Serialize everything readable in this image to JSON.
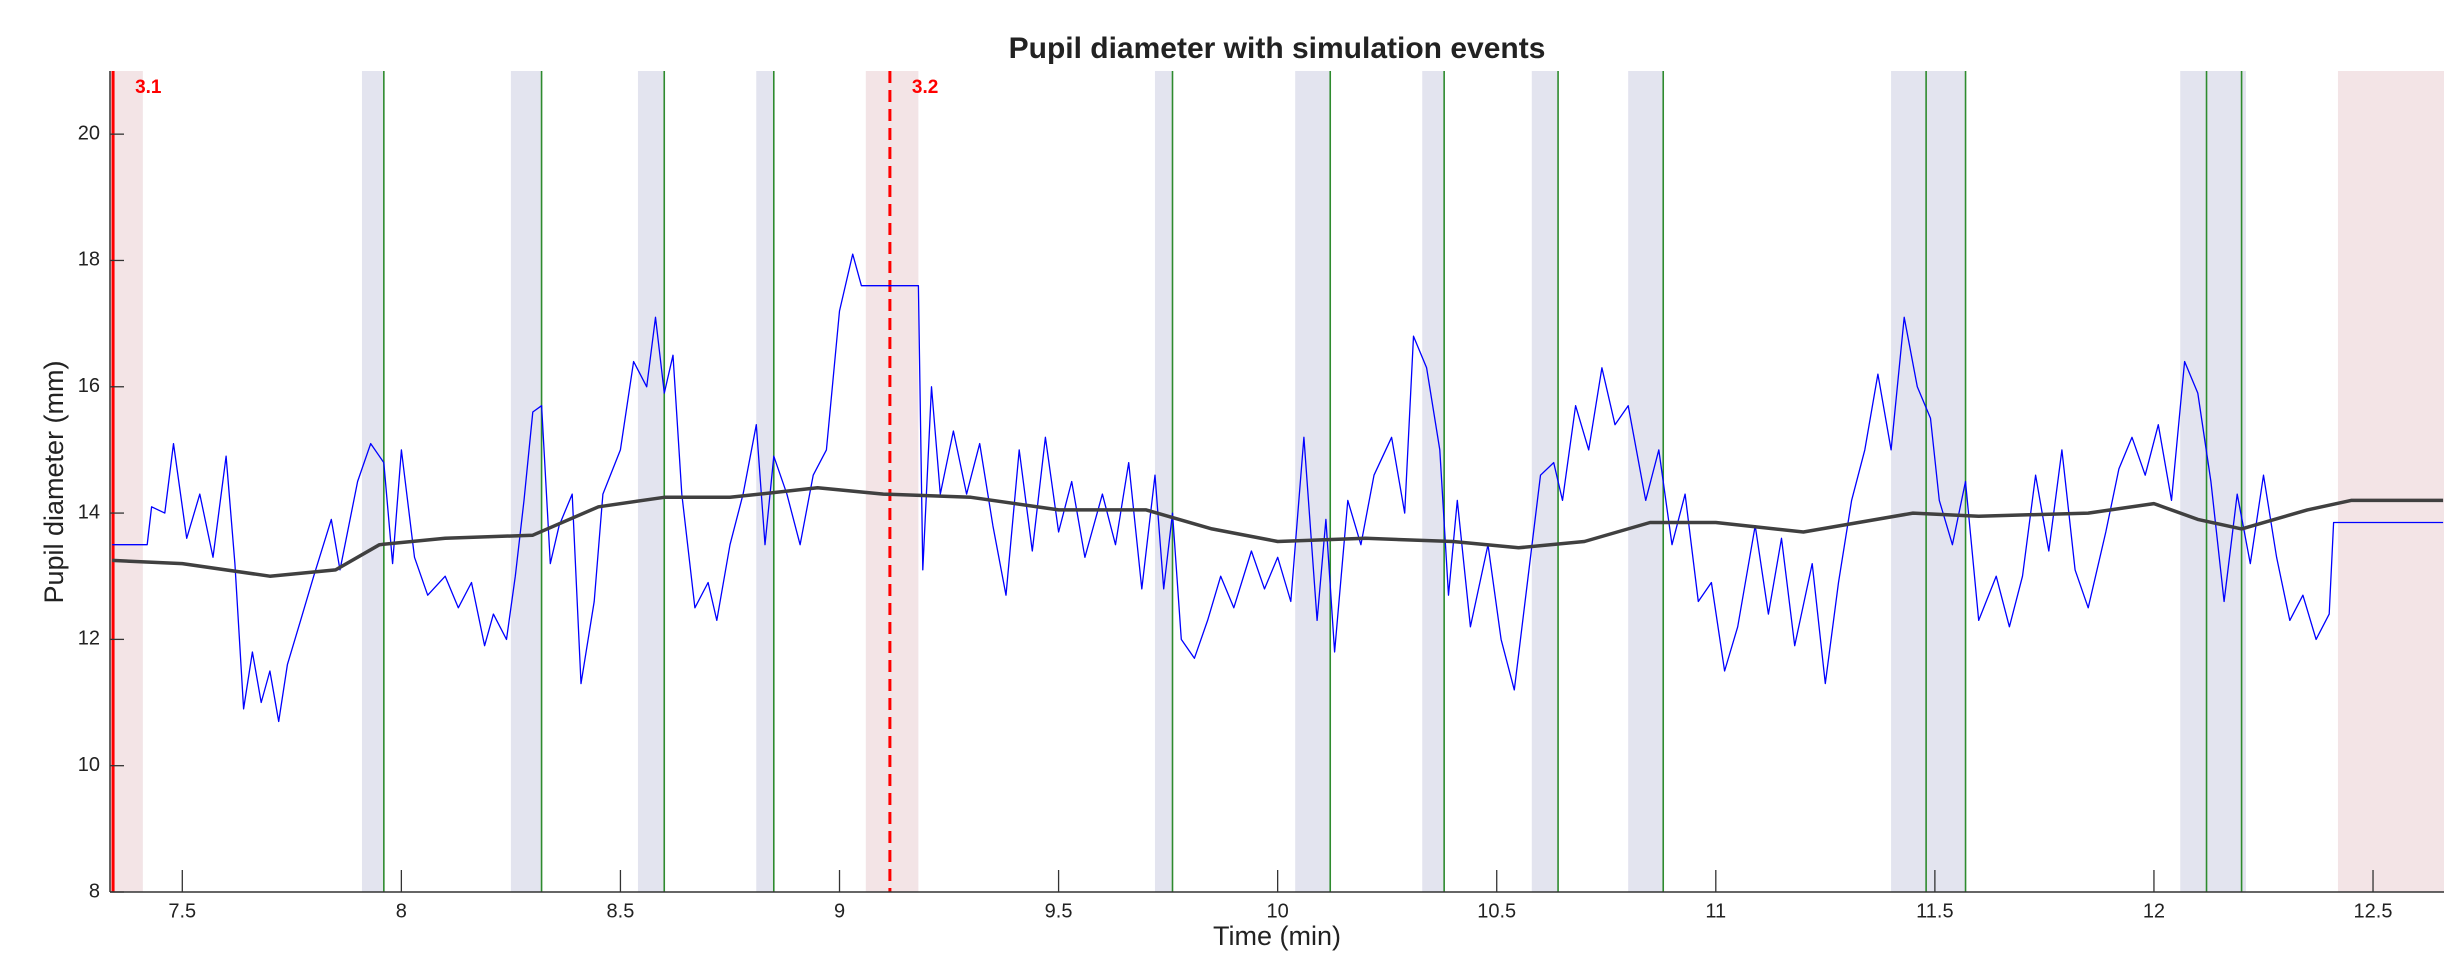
{
  "chart_data": {
    "type": "line",
    "title": "Pupil diameter with simulation events",
    "xlabel": "Time (min)",
    "ylabel": "Pupil diameter (mm)",
    "xlim": [
      7.335,
      12.662
    ],
    "ylim": [
      8,
      21
    ],
    "xticks": [
      7.5,
      8,
      8.5,
      9,
      9.5,
      10,
      10.5,
      11,
      11.5,
      12,
      12.5
    ],
    "yticks": [
      8,
      10,
      12,
      14,
      16,
      18,
      20
    ],
    "shaded_regions": [
      {
        "x": [
          7.91,
          7.96
        ],
        "color": "#e3e4ef"
      },
      {
        "x": [
          8.25,
          8.32
        ],
        "color": "#e3e4ef"
      },
      {
        "x": [
          8.54,
          8.6
        ],
        "color": "#e3e4ef"
      },
      {
        "x": [
          8.81,
          8.85
        ],
        "color": "#e3e4ef"
      },
      {
        "x": [
          9.72,
          9.76
        ],
        "color": "#e3e4ef"
      },
      {
        "x": [
          10.04,
          10.12
        ],
        "color": "#e3e4ef"
      },
      {
        "x": [
          10.33,
          10.38
        ],
        "color": "#e3e4ef"
      },
      {
        "x": [
          10.58,
          10.64
        ],
        "color": "#e3e4ef"
      },
      {
        "x": [
          10.8,
          10.88
        ],
        "color": "#e3e4ef"
      },
      {
        "x": [
          11.4,
          11.57
        ],
        "color": "#e3e4ef"
      },
      {
        "x": [
          12.06,
          12.21
        ],
        "color": "#e3e4ef"
      },
      {
        "x": [
          7.335,
          7.41
        ],
        "color": "#f3e4e6"
      },
      {
        "x": [
          9.06,
          9.18
        ],
        "color": "#f3e4e6"
      },
      {
        "x": [
          12.42,
          12.662
        ],
        "color": "#f3e4e6"
      }
    ],
    "event_lines": {
      "color": "#2e8b2e",
      "x": [
        7.96,
        8.32,
        8.6,
        8.85,
        9.76,
        10.12,
        10.38,
        10.64,
        10.88,
        11.48,
        11.57,
        12.12,
        12.2
      ]
    },
    "events": [
      {
        "x": 7.342,
        "label": "3.1",
        "line_style": "solid",
        "color": "#ff0000"
      },
      {
        "x": 9.115,
        "label": "3.2",
        "line_style": "dashed",
        "color": "#ff0000"
      }
    ],
    "series": [
      {
        "color": "#0000ff",
        "width": 1.3,
        "x": [
          7.34,
          7.42,
          7.43,
          7.46,
          7.48,
          7.51,
          7.54,
          7.57,
          7.6,
          7.62,
          7.64,
          7.66,
          7.68,
          7.7,
          7.72,
          7.74,
          7.77,
          7.8,
          7.84,
          7.86,
          7.9,
          7.93,
          7.96,
          7.98,
          8.0,
          8.03,
          8.06,
          8.1,
          8.13,
          8.16,
          8.19,
          8.21,
          8.24,
          8.26,
          8.28,
          8.3,
          8.32,
          8.34,
          8.36,
          8.39,
          8.41,
          8.44,
          8.46,
          8.5,
          8.53,
          8.56,
          8.58,
          8.6,
          8.62,
          8.64,
          8.67,
          8.7,
          8.72,
          8.75,
          8.78,
          8.81,
          8.83,
          8.85,
          8.88,
          8.91,
          8.94,
          8.97,
          9.0,
          9.03,
          9.05,
          9.18,
          9.19,
          9.21,
          9.23,
          9.26,
          9.29,
          9.32,
          9.35,
          9.38,
          9.41,
          9.44,
          9.47,
          9.5,
          9.53,
          9.56,
          9.6,
          9.63,
          9.66,
          9.69,
          9.72,
          9.74,
          9.76,
          9.78,
          9.81,
          9.84,
          9.87,
          9.9,
          9.94,
          9.97,
          10.0,
          10.03,
          10.06,
          10.09,
          10.11,
          10.13,
          10.16,
          10.19,
          10.22,
          10.26,
          10.29,
          10.31,
          10.34,
          10.37,
          10.39,
          10.41,
          10.44,
          10.48,
          10.51,
          10.54,
          10.57,
          10.6,
          10.63,
          10.65,
          10.68,
          10.71,
          10.74,
          10.77,
          10.8,
          10.84,
          10.87,
          10.9,
          10.93,
          10.96,
          10.99,
          11.02,
          11.05,
          11.09,
          11.12,
          11.15,
          11.18,
          11.22,
          11.25,
          11.28,
          11.31,
          11.34,
          11.37,
          11.4,
          11.43,
          11.46,
          11.49,
          11.51,
          11.54,
          11.57,
          11.6,
          11.64,
          11.67,
          11.7,
          11.73,
          11.76,
          11.79,
          11.82,
          11.85,
          11.89,
          11.92,
          11.95,
          11.98,
          12.01,
          12.04,
          12.07,
          12.1,
          12.13,
          12.16,
          12.19,
          12.22,
          12.25,
          12.28,
          12.31,
          12.34,
          12.37,
          12.4,
          12.41,
          12.66
        ],
        "values": [
          13.5,
          13.5,
          14.1,
          14.0,
          15.1,
          13.6,
          14.3,
          13.3,
          14.9,
          13.2,
          10.9,
          11.8,
          11.0,
          11.5,
          10.7,
          11.6,
          12.3,
          13.0,
          13.9,
          13.1,
          14.5,
          15.1,
          14.8,
          13.2,
          15.0,
          13.3,
          12.7,
          13.0,
          12.5,
          12.9,
          11.9,
          12.4,
          12.0,
          13.0,
          14.2,
          15.6,
          15.7,
          13.2,
          13.8,
          14.3,
          11.3,
          12.6,
          14.3,
          15.0,
          16.4,
          16.0,
          17.1,
          15.9,
          16.5,
          14.3,
          12.5,
          12.9,
          12.3,
          13.5,
          14.3,
          15.4,
          13.5,
          14.9,
          14.3,
          13.5,
          14.6,
          15.0,
          17.2,
          18.1,
          17.6,
          17.6,
          13.1,
          16.0,
          14.3,
          15.3,
          14.3,
          15.1,
          13.8,
          12.7,
          15.0,
          13.4,
          15.2,
          13.7,
          14.5,
          13.3,
          14.3,
          13.5,
          14.8,
          12.8,
          14.6,
          12.8,
          14.0,
          12.0,
          11.7,
          12.3,
          13.0,
          12.5,
          13.4,
          12.8,
          13.3,
          12.6,
          15.2,
          12.3,
          13.9,
          11.8,
          14.2,
          13.5,
          14.6,
          15.2,
          14.0,
          16.8,
          16.3,
          15.0,
          12.7,
          14.2,
          12.2,
          13.5,
          12.0,
          11.2,
          12.9,
          14.6,
          14.8,
          14.2,
          15.7,
          15.0,
          16.3,
          15.4,
          15.7,
          14.2,
          15.0,
          13.5,
          14.3,
          12.6,
          12.9,
          11.5,
          12.2,
          13.8,
          12.4,
          13.6,
          11.9,
          13.2,
          11.3,
          12.9,
          14.2,
          15.0,
          16.2,
          15.0,
          17.1,
          16.0,
          15.5,
          14.2,
          13.5,
          14.5,
          12.3,
          13.0,
          12.2,
          13.0,
          14.6,
          13.4,
          15.0,
          13.1,
          12.5,
          13.7,
          14.7,
          15.2,
          14.6,
          15.4,
          14.2,
          16.4,
          15.9,
          14.5,
          12.6,
          14.3,
          13.2,
          14.6,
          13.3,
          12.3,
          12.7,
          12.0,
          12.4,
          13.85,
          13.85
        ]
      },
      {
        "color": "#404040",
        "width": 3.5,
        "x": [
          7.34,
          7.5,
          7.7,
          7.85,
          7.95,
          8.1,
          8.3,
          8.45,
          8.6,
          8.75,
          8.95,
          9.1,
          9.3,
          9.5,
          9.7,
          9.85,
          10.0,
          10.2,
          10.4,
          10.55,
          10.7,
          10.85,
          11.0,
          11.2,
          11.45,
          11.6,
          11.85,
          12.0,
          12.1,
          12.2,
          12.35,
          12.45,
          12.66
        ],
        "values": [
          13.25,
          13.2,
          13.0,
          13.1,
          13.5,
          13.6,
          13.65,
          14.1,
          14.25,
          14.25,
          14.4,
          14.3,
          14.25,
          14.05,
          14.05,
          13.75,
          13.55,
          13.6,
          13.55,
          13.45,
          13.55,
          13.85,
          13.85,
          13.7,
          14.0,
          13.95,
          14.0,
          14.15,
          13.9,
          13.75,
          14.05,
          14.2,
          14.2
        ]
      }
    ]
  }
}
